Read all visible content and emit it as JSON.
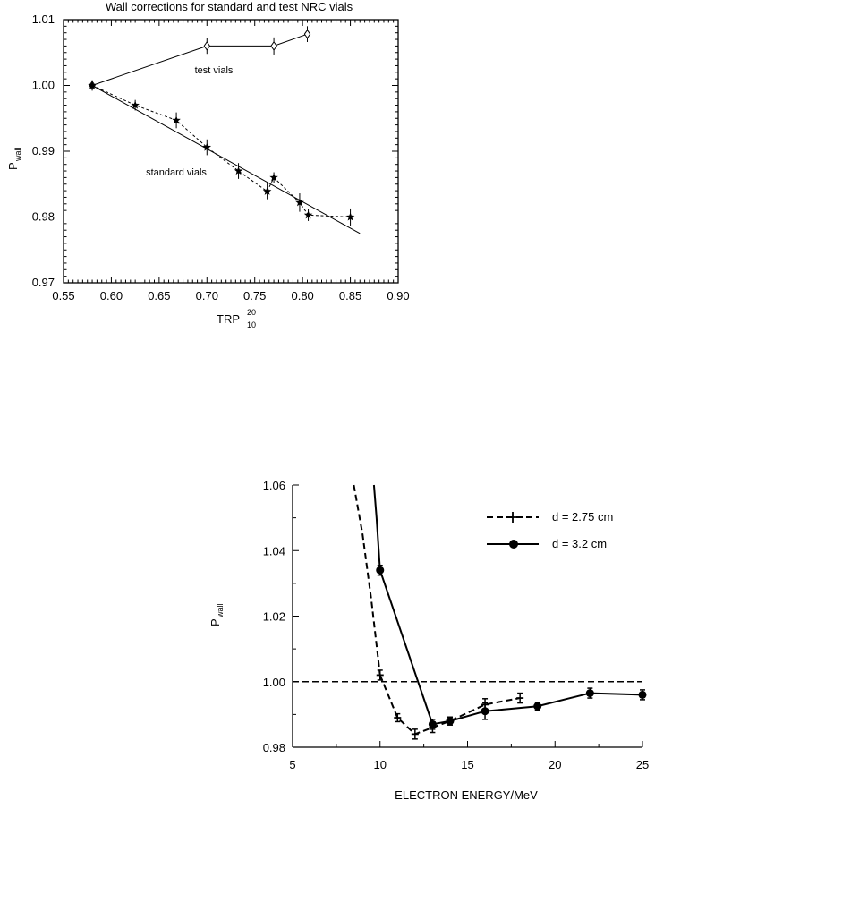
{
  "chart_data": [
    {
      "type": "line",
      "title": "Wall corrections for standard and test NRC vials",
      "xlabel": "TRP",
      "xlabel_sup": "20",
      "xlabel_sub": "10",
      "ylabel": "P",
      "ylabel_sub": "wall",
      "xlim": [
        0.55,
        0.9
      ],
      "ylim": [
        0.97,
        1.01
      ],
      "xticks": [
        "0.55",
        "0.60",
        "0.65",
        "0.70",
        "0.75",
        "0.80",
        "0.85",
        "0.90"
      ],
      "yticks": [
        "0.97",
        "0.98",
        "0.99",
        "1.00",
        "1.01"
      ],
      "annotations": [
        {
          "text": "test vials",
          "x": 0.7,
          "y": 1.0021
        },
        {
          "text": "standard vials",
          "x": 0.677,
          "y": 0.9862
        }
      ],
      "series": [
        {
          "line": "solid",
          "marker": "open-diamond",
          "points": [
            {
              "x": 0.58,
              "y": 1.0,
              "err": 0.0007
            },
            {
              "x": 0.7,
              "y": 1.006,
              "err": 0.0012
            },
            {
              "x": 0.77,
              "y": 1.006,
              "err": 0.0013
            },
            {
              "x": 0.805,
              "y": 1.0078,
              "err": 0.0012
            }
          ]
        },
        {
          "line": "dashed",
          "marker": "star",
          "points": [
            {
              "x": 0.58,
              "y": 1.0,
              "err": 0.0008
            },
            {
              "x": 0.625,
              "y": 0.997,
              "err": 0.0008
            },
            {
              "x": 0.668,
              "y": 0.9947,
              "err": 0.0012
            },
            {
              "x": 0.7,
              "y": 0.9906,
              "err": 0.0012
            },
            {
              "x": 0.733,
              "y": 0.987,
              "err": 0.0012
            },
            {
              "x": 0.763,
              "y": 0.9839,
              "err": 0.0012
            },
            {
              "x": 0.77,
              "y": 0.986,
              "err": 0.0008
            },
            {
              "x": 0.797,
              "y": 0.9822,
              "err": 0.0014
            },
            {
              "x": 0.806,
              "y": 0.9803,
              "err": 0.0009
            },
            {
              "x": 0.85,
              "y": 0.98,
              "err": 0.0013
            }
          ]
        },
        {
          "line": "solid",
          "marker": "none",
          "points": [
            {
              "x": 0.58,
              "y": 1.0
            },
            {
              "x": 0.86,
              "y": 0.9775
            }
          ]
        }
      ]
    },
    {
      "type": "line",
      "xlabel": "ELECTRON ENERGY/MeV",
      "ylabel": "P",
      "ylabel_sub": "wall",
      "xlim": [
        5,
        25
      ],
      "ylim": [
        0.98,
        1.06
      ],
      "xticks": [
        "5",
        "10",
        "15",
        "20",
        "25"
      ],
      "yticks": [
        "0.98",
        "1.00",
        "1.02",
        "1.04",
        "1.06"
      ],
      "reference_line": {
        "y": 1.0,
        "style": "dashed"
      },
      "legend_position": "top-right",
      "series": [
        {
          "name": "d = 2.75 cm",
          "line": "dashed",
          "marker": "plus",
          "curve": [
            {
              "x": 8.5,
              "y": 1.06
            },
            {
              "x": 9.0,
              "y": 1.045
            },
            {
              "x": 9.5,
              "y": 1.025
            },
            {
              "x": 10.0,
              "y": 1.002
            }
          ],
          "points": [
            {
              "x": 10.0,
              "y": 1.002,
              "err": 0.0015
            },
            {
              "x": 11.0,
              "y": 0.989,
              "err": 0.0012
            },
            {
              "x": 12.0,
              "y": 0.984,
              "err": 0.0015
            },
            {
              "x": 13.0,
              "y": 0.986,
              "err": 0.0015
            },
            {
              "x": 14.0,
              "y": 0.988,
              "err": 0.0012
            },
            {
              "x": 16.0,
              "y": 0.993,
              "err": 0.0018
            },
            {
              "x": 18.0,
              "y": 0.995,
              "err": 0.0015
            }
          ]
        },
        {
          "name": "d = 3.2 cm",
          "line": "solid",
          "marker": "filled-circle",
          "curve": [
            {
              "x": 9.65,
              "y": 1.06
            },
            {
              "x": 9.8,
              "y": 1.05
            },
            {
              "x": 10.0,
              "y": 1.034
            }
          ],
          "points": [
            {
              "x": 10.0,
              "y": 1.034,
              "err": 0.0015
            },
            {
              "x": 13.0,
              "y": 0.987,
              "err": 0.0015
            },
            {
              "x": 14.0,
              "y": 0.988,
              "err": 0.0012
            },
            {
              "x": 16.0,
              "y": 0.991,
              "err": 0.0025
            },
            {
              "x": 19.0,
              "y": 0.9925,
              "err": 0.0012
            },
            {
              "x": 22.0,
              "y": 0.9965,
              "err": 0.0015
            },
            {
              "x": 25.0,
              "y": 0.996,
              "err": 0.0015
            }
          ]
        }
      ]
    }
  ]
}
